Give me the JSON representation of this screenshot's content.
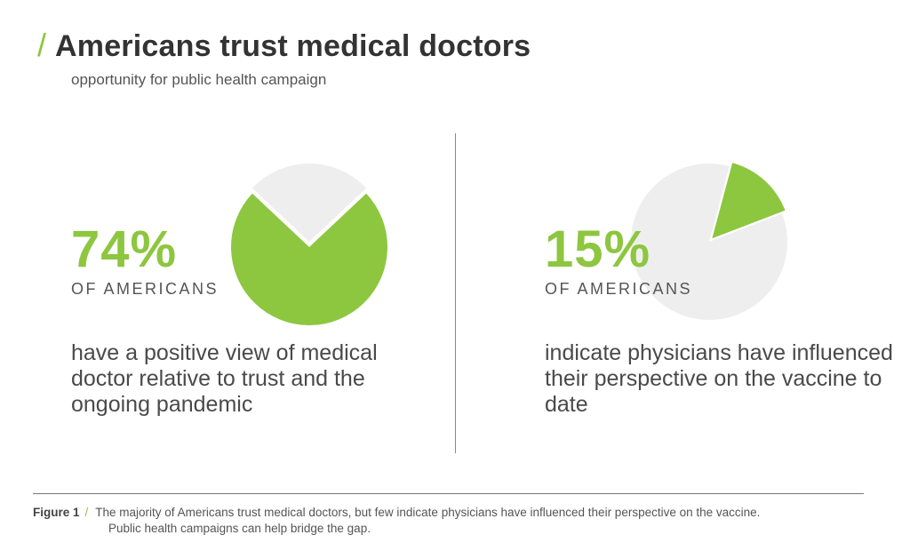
{
  "header": {
    "slash": "/",
    "title": "Americans trust medical doctors",
    "subtitle": "opportunity for public health campaign"
  },
  "colors": {
    "accent": "#8dc63f",
    "pie_rest": "#eeeeee"
  },
  "chart_data": [
    {
      "type": "pie",
      "title": "74%",
      "values": [
        74,
        26
      ],
      "labels": [
        "74%",
        ""
      ],
      "colors": [
        "#8dc63f",
        "#eeeeee"
      ],
      "exploded_index": 0,
      "stat": {
        "value": "74%",
        "label": "OF AMERICANS",
        "description": "have a positive view of medical doctor relative to trust and the ongoing pandemic"
      }
    },
    {
      "type": "pie",
      "title": "15%",
      "values": [
        15,
        85
      ],
      "labels": [
        "15%",
        ""
      ],
      "colors": [
        "#8dc63f",
        "#eeeeee"
      ],
      "exploded_index": 0,
      "stat": {
        "value": "15%",
        "label": "OF AMERICANS",
        "description": "indicate physicians have influenced their perspective on the vaccine to date"
      }
    }
  ],
  "caption": {
    "figure_label": "Figure 1",
    "slash": "/",
    "line1": "The majority of Americans trust medical doctors, but few indicate physicians have influenced their perspective on the vaccine.",
    "line2": "Public health campaigns can help bridge the gap."
  }
}
